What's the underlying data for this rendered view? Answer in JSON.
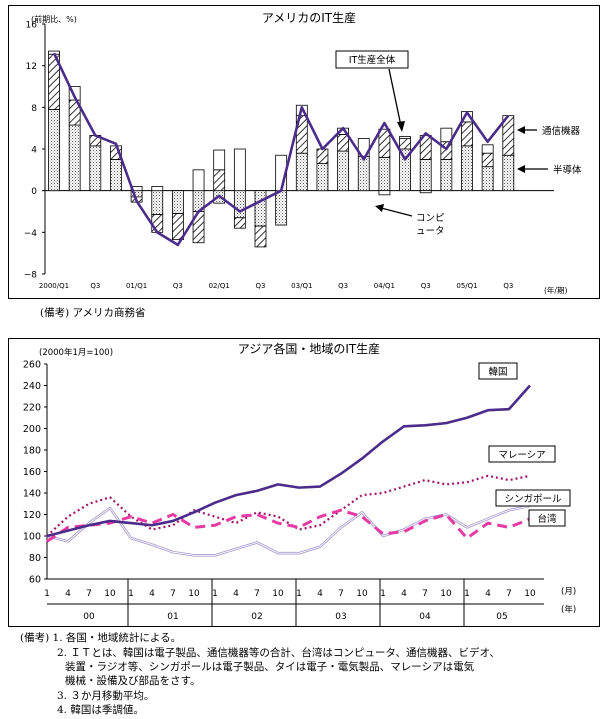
{
  "chart_data": [
    {
      "type": "bar",
      "title": "アメリカのIT生産",
      "unit_label": "(前期比、%)",
      "x_unit": "(年/期)",
      "ylim": [
        -8,
        16
      ],
      "yticks": [
        "16",
        "12",
        "8",
        "4",
        "0",
        "−4",
        "−8"
      ],
      "ytick_values": [
        16,
        12,
        8,
        4,
        0,
        -4,
        -8
      ],
      "tick_labels": [
        "2000/Q1",
        "Q3",
        "01/Q1",
        "Q3",
        "02/Q1",
        "Q3",
        "03/Q1",
        "Q3",
        "04/Q1",
        "Q3",
        "05/Q1",
        "Q3"
      ],
      "tick_positions": [
        0,
        2,
        4,
        6,
        8,
        10,
        12,
        14,
        16,
        18,
        20,
        22
      ],
      "series": [
        {
          "name": "半導体",
          "values": [
            7.8,
            6.3,
            4.3,
            3.0,
            -0.6,
            -2.3,
            -2.2,
            -2.0,
            -1.2,
            -2.6,
            -3.4,
            -3.3,
            3.6,
            2.6,
            3.8,
            3.3,
            3.2,
            4.0,
            3.0,
            3.0,
            4.3,
            2.3,
            3.4
          ]
        },
        {
          "name": "通信機器",
          "values": [
            5.3,
            2.4,
            1.0,
            1.3,
            -0.5,
            -1.7,
            -2.5,
            -3.0,
            2.0,
            -1.0,
            -2.0,
            0.0,
            3.6,
            1.4,
            1.6,
            0.0,
            2.7,
            1.0,
            2.3,
            1.7,
            2.3,
            1.3,
            3.8
          ]
        },
        {
          "name": "コンピュータ",
          "values": [
            0.3,
            1.3,
            0.0,
            0.0,
            0.4,
            0.4,
            0.0,
            2.0,
            1.9,
            4.0,
            0.0,
            3.4,
            1.0,
            0.0,
            0.6,
            1.7,
            -0.4,
            0.2,
            -0.2,
            1.3,
            1.0,
            0.8,
            0.0
          ]
        },
        {
          "name": "IT生産全体",
          "values": [
            13.2,
            9.0,
            5.3,
            4.5,
            -1.0,
            -4.0,
            -5.2,
            -2.0,
            -0.5,
            -2.0,
            -1.0,
            0.0,
            8.0,
            4.0,
            6.0,
            3.0,
            6.5,
            3.0,
            5.5,
            4.0,
            7.5,
            4.7,
            7.2
          ]
        }
      ],
      "labels": {
        "total": "IT生産全体",
        "telecom": "通信機器",
        "semi": "半導体",
        "computer": "コンピ\nュータ"
      },
      "grid": false,
      "source": "(備考)  アメリカ商務省"
    },
    {
      "type": "line",
      "title": "アジア各国・地域のIT生産",
      "unit_label": "(2000年1月=100)",
      "ylim": [
        60,
        260
      ],
      "yticks": [
        "260",
        "240",
        "220",
        "200",
        "180",
        "160",
        "140",
        "120",
        "100",
        "80",
        "60"
      ],
      "ytick_values": [
        260,
        240,
        220,
        200,
        180,
        160,
        140,
        120,
        100,
        80,
        60
      ],
      "month_labels": [
        "1",
        "4",
        "7",
        "10",
        "1",
        "4",
        "7",
        "10",
        "1",
        "4",
        "7",
        "10",
        "1",
        "4",
        "7",
        "10",
        "1",
        "4",
        "7",
        "10",
        "1",
        "4",
        "7",
        "10"
      ],
      "month_unit": "(月)",
      "year_labels": [
        "00",
        "01",
        "02",
        "03",
        "04",
        "05"
      ],
      "year_unit": "(年)",
      "x": [
        1,
        4,
        7,
        10,
        13,
        16,
        19,
        22,
        25,
        28,
        31,
        34,
        37,
        40,
        43,
        46,
        49,
        52,
        55,
        58,
        61,
        64,
        67,
        70
      ],
      "series": [
        {
          "name": "韓国",
          "values": [
            100,
            105,
            110,
            114,
            112,
            110,
            114,
            122,
            131,
            138,
            142,
            148,
            145,
            146,
            158,
            172,
            188,
            202,
            203,
            205,
            210,
            217,
            218,
            240
          ]
        },
        {
          "name": "マレーシア",
          "values": [
            100,
            118,
            130,
            136,
            118,
            106,
            110,
            124,
            118,
            112,
            122,
            118,
            106,
            110,
            124,
            138,
            140,
            146,
            152,
            148,
            150,
            156,
            152,
            156
          ]
        },
        {
          "name": "シンガポール",
          "values": [
            100,
            95,
            112,
            126,
            98,
            92,
            85,
            82,
            82,
            88,
            94,
            84,
            84,
            90,
            108,
            122,
            100,
            106,
            116,
            120,
            108,
            116,
            124,
            128
          ]
        },
        {
          "name": "台湾",
          "values": [
            95,
            108,
            110,
            112,
            118,
            112,
            120,
            108,
            110,
            118,
            120,
            112,
            108,
            118,
            124,
            118,
            102,
            104,
            114,
            120,
            98,
            112,
            108,
            116
          ]
        }
      ],
      "grid": false,
      "notes": [
        "(備考) 1. 各国・地域統計による。",
        "2. ＩＴとは、韓国は電子製品、通信機器等の合計、台湾はコンピュータ、通信機器、ビデオ、",
        "装置・ラジオ等、シンガポールは電子製品、タイは電子・電気製品、マレーシアは電気",
        "機械・設備及び部品をさす。",
        "3. ３か月移動平均。",
        "4. 韓国は季調値。"
      ]
    }
  ],
  "colors": {
    "total": "#4b2c8a",
    "korea": "#4b2c8a",
    "malaysia": "#a2166a",
    "singapore": "#a99bd0",
    "taiwan": "#e63aa5"
  }
}
